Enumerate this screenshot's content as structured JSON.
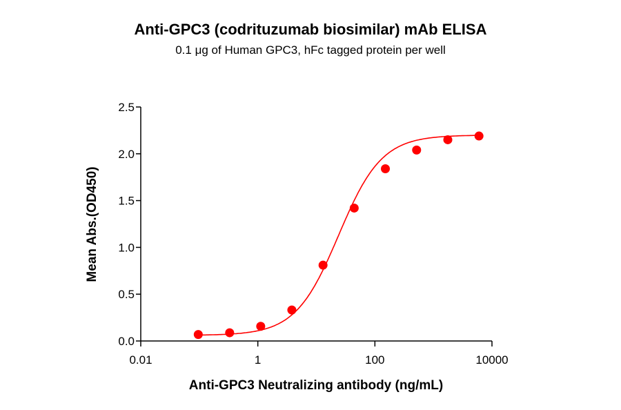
{
  "chart_data": {
    "type": "scatter",
    "title": "Anti-GPC3 (codrituzumab biosimilar) mAb ELISA",
    "subtitle": "0.1 μg of Human GPC3, hFc tagged protein per well",
    "xlabel": "Anti-GPC3 Neutralizing antibody (ng/mL)",
    "ylabel": "Mean Abs.(OD450)",
    "xscale": "log",
    "xlim": [
      0.01,
      10000
    ],
    "ylim": [
      0,
      2.5
    ],
    "xticks": [
      0.01,
      1,
      100,
      10000
    ],
    "xtick_labels": [
      "0.01",
      "1",
      "100",
      "10000"
    ],
    "yticks": [
      0,
      0.5,
      1,
      1.5,
      2,
      2.5
    ],
    "ytick_labels": [
      "0.0",
      "0.5",
      "1.0",
      "1.5",
      "2.0",
      "2.5"
    ],
    "grid": false,
    "color": "#ff0000",
    "fit_curve": "sigmoidal",
    "x": [
      0.096,
      0.33,
      1.12,
      3.81,
      13,
      44.3,
      151,
      516,
      1760,
      6000
    ],
    "y": [
      0.069,
      0.088,
      0.157,
      0.331,
      0.81,
      1.42,
      1.84,
      2.04,
      2.15,
      2.19
    ]
  }
}
